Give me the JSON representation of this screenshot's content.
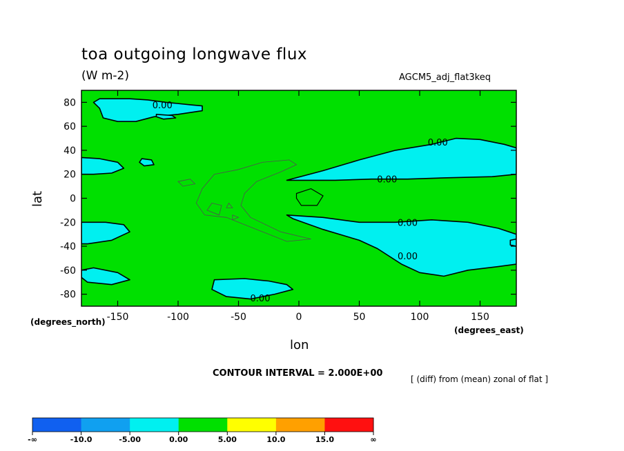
{
  "chart_data": {
    "type": "heatmap",
    "title": "toa outgoing longwave flux",
    "units": "(W m-2)",
    "model_label": "AGCM5_adj_flat3keq",
    "xlabel": "lon",
    "ylabel": "lat",
    "x_unit_label": "(degrees_east)",
    "y_unit_label": "(degrees_north)",
    "contour_interval_text": "CONTOUR INTERVAL = 2.000E+00",
    "subtitle_right": "[ (diff) from (mean) zonal of flat ]",
    "xlim": [
      -180,
      180
    ],
    "ylim": [
      -90,
      90
    ],
    "x_ticks": [
      -150,
      -100,
      -50,
      0,
      50,
      100,
      150
    ],
    "y_ticks": [
      80,
      60,
      40,
      20,
      0,
      -20,
      -40,
      -60,
      -80
    ],
    "x_tick_labels": [
      "-150",
      "-100",
      "-50",
      "0",
      "50",
      "100",
      "150"
    ],
    "y_tick_labels": [
      "80",
      "60",
      "40",
      "20",
      "0",
      "-20",
      "-40",
      "-60",
      "-80"
    ],
    "background_band": "0.00 to 5.00",
    "contour_labels": [
      {
        "text": "0.00",
        "lon": -113,
        "lat": 78
      },
      {
        "text": "0.00",
        "lon": 115,
        "lat": 47
      },
      {
        "text": "0.00",
        "lon": 73,
        "lat": 16
      },
      {
        "text": "0.00",
        "lon": 90,
        "lat": -20
      },
      {
        "text": "0.00",
        "lon": 90,
        "lat": -48
      },
      {
        "text": "0.00",
        "lon": -32,
        "lat": -83
      }
    ],
    "negative_regions": [
      {
        "name": "north-pacific-high-lat",
        "points": [
          [
            -165,
            83
          ],
          [
            -140,
            83
          ],
          [
            -125,
            82
          ],
          [
            -110,
            80
          ],
          [
            -90,
            78
          ],
          [
            -80,
            77
          ],
          [
            -80,
            73
          ],
          [
            -100,
            70
          ],
          [
            -120,
            68
          ],
          [
            -135,
            64
          ],
          [
            -150,
            64
          ],
          [
            -162,
            67
          ],
          [
            -165,
            75
          ],
          [
            -170,
            80
          ]
        ]
      },
      {
        "name": "north-small-island",
        "points": [
          [
            -118,
            70
          ],
          [
            -105,
            69
          ],
          [
            -102,
            67
          ],
          [
            -112,
            66
          ],
          [
            -118,
            68
          ]
        ]
      },
      {
        "name": "north-atlantic-west",
        "points": [
          [
            -180,
            34
          ],
          [
            -165,
            33
          ],
          [
            -150,
            30
          ],
          [
            -145,
            25
          ],
          [
            -155,
            21
          ],
          [
            -170,
            20
          ],
          [
            -180,
            20
          ]
        ]
      },
      {
        "name": "north-tiny-blob",
        "points": [
          [
            -130,
            33
          ],
          [
            -122,
            32
          ],
          [
            -120,
            28
          ],
          [
            -128,
            27
          ],
          [
            -132,
            30
          ]
        ]
      },
      {
        "name": "north-africa-asia-band",
        "points": [
          [
            -10,
            15
          ],
          [
            20,
            23
          ],
          [
            50,
            32
          ],
          [
            80,
            40
          ],
          [
            110,
            45
          ],
          [
            130,
            50
          ],
          [
            150,
            49
          ],
          [
            170,
            45
          ],
          [
            180,
            42
          ],
          [
            180,
            20
          ],
          [
            160,
            18
          ],
          [
            120,
            17
          ],
          [
            90,
            16
          ],
          [
            60,
            16
          ],
          [
            30,
            15
          ],
          [
            0,
            15
          ]
        ]
      },
      {
        "name": "south-east-band",
        "points": [
          [
            -10,
            -14
          ],
          [
            20,
            -16
          ],
          [
            50,
            -20
          ],
          [
            80,
            -20
          ],
          [
            110,
            -18
          ],
          [
            140,
            -20
          ],
          [
            165,
            -25
          ],
          [
            180,
            -30
          ],
          [
            180,
            -55
          ],
          [
            165,
            -57
          ],
          [
            140,
            -60
          ],
          [
            120,
            -65
          ],
          [
            100,
            -62
          ],
          [
            85,
            -55
          ],
          [
            65,
            -42
          ],
          [
            50,
            -35
          ],
          [
            20,
            -26
          ],
          [
            -5,
            -17
          ]
        ]
      },
      {
        "name": "south-west-band",
        "points": [
          [
            -180,
            -20
          ],
          [
            -160,
            -20
          ],
          [
            -145,
            -22
          ],
          [
            -140,
            -28
          ],
          [
            -155,
            -35
          ],
          [
            -175,
            -38
          ],
          [
            -180,
            -38
          ]
        ]
      },
      {
        "name": "south-west-lower",
        "points": [
          [
            -180,
            -60
          ],
          [
            -170,
            -58
          ],
          [
            -150,
            -62
          ],
          [
            -140,
            -68
          ],
          [
            -155,
            -72
          ],
          [
            -175,
            -70
          ],
          [
            -180,
            -66
          ]
        ]
      },
      {
        "name": "antarctic-blob",
        "points": [
          [
            -70,
            -68
          ],
          [
            -45,
            -67
          ],
          [
            -25,
            -69
          ],
          [
            -10,
            -72
          ],
          [
            -5,
            -76
          ],
          [
            -20,
            -80
          ],
          [
            -40,
            -84
          ],
          [
            -60,
            -82
          ],
          [
            -72,
            -76
          ]
        ]
      },
      {
        "name": "east-tiny",
        "points": [
          [
            175,
            -35
          ],
          [
            180,
            -34
          ],
          [
            180,
            -40
          ],
          [
            175,
            -39
          ]
        ]
      }
    ],
    "thin_contours": [
      {
        "name": "gray-contour-a",
        "points": [
          [
            -85,
            -4
          ],
          [
            -80,
            8
          ],
          [
            -70,
            20
          ],
          [
            -50,
            24
          ],
          [
            -30,
            30
          ],
          [
            -8,
            32
          ],
          [
            -2,
            28
          ],
          [
            -15,
            22
          ],
          [
            -35,
            14
          ],
          [
            -45,
            4
          ],
          [
            -48,
            -6
          ],
          [
            -40,
            -16
          ],
          [
            -15,
            -28
          ],
          [
            10,
            -34
          ],
          [
            -10,
            -36
          ],
          [
            -40,
            -24
          ],
          [
            -60,
            -16
          ],
          [
            -78,
            -14
          ]
        ]
      },
      {
        "name": "gray-contour-b",
        "points": [
          [
            -100,
            14
          ],
          [
            -90,
            16
          ],
          [
            -86,
            12
          ],
          [
            -96,
            10
          ]
        ]
      },
      {
        "name": "gray-contour-c",
        "points": [
          [
            -72,
            -4
          ],
          [
            -64,
            -6
          ],
          [
            -66,
            -14
          ],
          [
            -76,
            -10
          ]
        ]
      },
      {
        "name": "gray-contour-d",
        "points": [
          [
            -58,
            -4
          ],
          [
            -55,
            -8
          ],
          [
            -60,
            -8
          ]
        ]
      },
      {
        "name": "gray-contour-e",
        "points": [
          [
            -55,
            -14
          ],
          [
            -50,
            -16
          ],
          [
            -55,
            -18
          ]
        ]
      },
      {
        "name": "dark-contour-f",
        "points": [
          [
            -2,
            4
          ],
          [
            10,
            8
          ],
          [
            20,
            2
          ],
          [
            15,
            -6
          ],
          [
            2,
            -6
          ],
          [
            -2,
            0
          ]
        ]
      }
    ],
    "colorbar": {
      "labels": [
        "-∞",
        "-10.0",
        "-5.00",
        "0.00",
        "5.00",
        "10.0",
        "15.0",
        "∞"
      ],
      "colors": [
        "#1060f0",
        "#10a0f0",
        "#00f0f0",
        "#00e000",
        "#ffff00",
        "#ffa000",
        "#ff1010"
      ]
    },
    "colors": {
      "positive_fill": "#00e000",
      "negative_fill": "#00f0f0",
      "contour_dark": "#000000",
      "contour_thin": "#505050"
    }
  }
}
